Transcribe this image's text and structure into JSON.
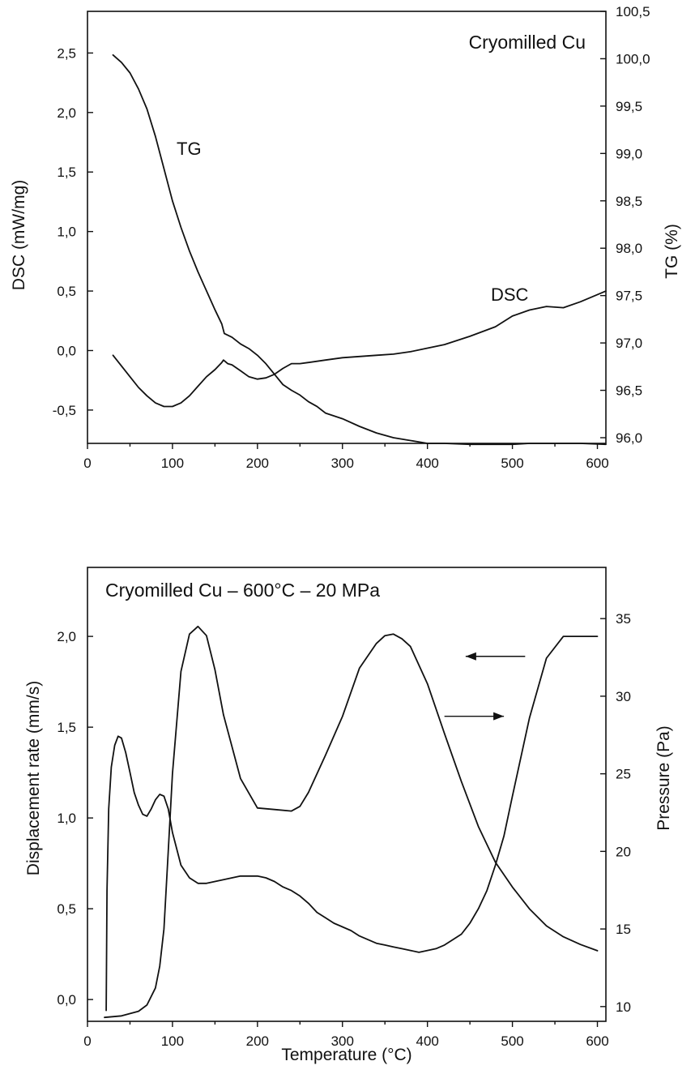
{
  "chart_data": [
    {
      "type": "line",
      "title": "Cryomilled Cu",
      "xlabel": "",
      "ylabel": "DSC (mW/mg)",
      "y2label": "TG (%)",
      "xlim": [
        0,
        610
      ],
      "ylim": [
        -0.78,
        2.85
      ],
      "y2lim": [
        95.94,
        100.5
      ],
      "xticks": [
        "0",
        "100",
        "200",
        "300",
        "400",
        "500",
        "600"
      ],
      "xtick_values": [
        0,
        100,
        200,
        300,
        400,
        500,
        600
      ],
      "yticks": [
        "-0,5",
        "0,0",
        "0,5",
        "1,0",
        "1,5",
        "2,0",
        "2,5"
      ],
      "ytick_values": [
        -0.5,
        0,
        0.5,
        1.0,
        1.5,
        2.0,
        2.5
      ],
      "y2ticks": [
        "96,0",
        "96,5",
        "97,0",
        "97,5",
        "98,0",
        "98,5",
        "99,0",
        "99,5",
        "100,0",
        "100,5"
      ],
      "y2tick_values": [
        96.0,
        96.5,
        97.0,
        97.5,
        98.0,
        98.5,
        99.0,
        99.5,
        100.0,
        100.5
      ],
      "annotations": [
        {
          "text": "TG",
          "x": 118,
          "y": 1.72
        },
        {
          "text": "DSC",
          "x": 503,
          "y": 0.46
        }
      ],
      "series": [
        {
          "name": "TG",
          "axis": "right",
          "x": [
            30,
            40,
            50,
            60,
            70,
            80,
            90,
            100,
            110,
            120,
            130,
            140,
            150,
            158,
            161,
            170,
            180,
            190,
            200,
            210,
            220,
            230,
            240,
            250,
            260,
            270,
            280,
            300,
            320,
            340,
            360,
            380,
            400,
            420,
            450,
            480,
            500,
            520,
            550,
            580,
            610
          ],
          "y": [
            100.04,
            99.96,
            99.85,
            99.68,
            99.47,
            99.18,
            98.84,
            98.5,
            98.22,
            97.97,
            97.75,
            97.55,
            97.35,
            97.2,
            97.1,
            97.06,
            96.99,
            96.94,
            96.87,
            96.78,
            96.67,
            96.56,
            96.5,
            96.45,
            96.38,
            96.33,
            96.26,
            96.2,
            96.12,
            96.05,
            96.0,
            95.97,
            95.94,
            95.94,
            95.93,
            95.93,
            95.93,
            95.94,
            95.94,
            95.94,
            95.93
          ]
        },
        {
          "name": "DSC",
          "axis": "left",
          "x": [
            30,
            40,
            50,
            60,
            70,
            80,
            90,
            100,
            110,
            120,
            130,
            140,
            150,
            158,
            160,
            165,
            170,
            180,
            190,
            200,
            210,
            220,
            230,
            240,
            250,
            260,
            280,
            300,
            320,
            340,
            360,
            380,
            400,
            420,
            450,
            480,
            500,
            520,
            540,
            560,
            580,
            610
          ],
          "y": [
            -0.04,
            -0.13,
            -0.22,
            -0.31,
            -0.38,
            -0.44,
            -0.47,
            -0.47,
            -0.44,
            -0.38,
            -0.3,
            -0.22,
            -0.16,
            -0.1,
            -0.08,
            -0.11,
            -0.12,
            -0.17,
            -0.22,
            -0.24,
            -0.23,
            -0.2,
            -0.15,
            -0.11,
            -0.11,
            -0.1,
            -0.08,
            -0.06,
            -0.05,
            -0.04,
            -0.03,
            -0.01,
            0.02,
            0.05,
            0.12,
            0.2,
            0.29,
            0.34,
            0.37,
            0.36,
            0.41,
            0.5
          ]
        }
      ]
    },
    {
      "type": "line",
      "title": "Cryomilled Cu – 600°C – 20 MPa",
      "xlabel": "Temperature (°C)",
      "ylabel": "Displacement rate (mm/s)",
      "y2label": "Pressure (Pa)",
      "xlim": [
        0,
        610
      ],
      "ylim": [
        -0.12,
        2.38
      ],
      "y2lim": [
        9.05,
        38.3
      ],
      "xticks": [
        "0",
        "100",
        "200",
        "300",
        "400",
        "500",
        "600"
      ],
      "xtick_values": [
        0,
        100,
        200,
        300,
        400,
        500,
        600
      ],
      "yticks": [
        "0,0",
        "0,5",
        "1,0",
        "1,5",
        "2,0"
      ],
      "ytick_values": [
        0,
        0.5,
        1.0,
        1.5,
        2.0
      ],
      "y2ticks": [
        "10",
        "15",
        "20",
        "25",
        "30",
        "35"
      ],
      "y2tick_values": [
        10,
        15,
        20,
        25,
        30,
        35
      ],
      "arrows": [
        {
          "direction": "left",
          "points_to_axis": "left",
          "x_from": 515,
          "x_to": 445,
          "y": 1.89
        },
        {
          "direction": "right",
          "points_to_axis": "right",
          "x_from": 420,
          "x_to": 490,
          "y": 1.56
        }
      ],
      "series": [
        {
          "name": "Displacement rate",
          "axis": "left",
          "x": [
            22,
            23,
            25,
            28,
            32,
            36,
            40,
            45,
            50,
            55,
            60,
            65,
            70,
            75,
            80,
            85,
            90,
            95,
            100,
            110,
            120,
            130,
            140,
            150,
            160,
            170,
            180,
            190,
            200,
            210,
            220,
            230,
            240,
            250,
            260,
            270,
            280,
            290,
            300,
            310,
            320,
            330,
            340,
            350,
            360,
            370,
            380,
            390,
            400,
            410,
            420,
            430,
            440,
            450,
            460,
            470,
            480,
            490,
            500,
            520,
            540,
            560,
            580,
            600
          ],
          "y": [
            -0.06,
            0.6,
            1.05,
            1.28,
            1.4,
            1.45,
            1.44,
            1.36,
            1.25,
            1.14,
            1.07,
            1.02,
            1.01,
            1.05,
            1.1,
            1.13,
            1.12,
            1.05,
            0.92,
            0.74,
            0.67,
            0.64,
            0.64,
            0.65,
            0.66,
            0.67,
            0.68,
            0.68,
            0.68,
            0.67,
            0.65,
            0.62,
            0.6,
            0.57,
            0.53,
            0.48,
            0.45,
            0.42,
            0.4,
            0.38,
            0.35,
            0.33,
            0.31,
            0.3,
            0.29,
            0.28,
            0.27,
            0.26,
            0.27,
            0.28,
            0.3,
            0.33,
            0.36,
            0.42,
            0.5,
            0.6,
            0.74,
            0.9,
            1.12,
            1.55,
            1.88,
            2.0,
            2.0,
            2.0
          ]
        },
        {
          "name": "Pressure",
          "axis": "right",
          "x": [
            20,
            40,
            60,
            70,
            80,
            85,
            90,
            95,
            100,
            110,
            120,
            130,
            140,
            150,
            160,
            180,
            200,
            220,
            240,
            250,
            260,
            280,
            300,
            320,
            340,
            350,
            360,
            370,
            380,
            400,
            420,
            440,
            460,
            480,
            500,
            520,
            540,
            560,
            580,
            600
          ],
          "y": [
            9.3,
            9.4,
            9.7,
            10.1,
            11.2,
            12.6,
            15.0,
            20.0,
            25.0,
            31.6,
            34.0,
            34.5,
            33.9,
            31.7,
            28.8,
            24.7,
            22.8,
            22.7,
            22.6,
            22.9,
            23.8,
            26.2,
            28.7,
            31.8,
            33.4,
            33.9,
            34.0,
            33.7,
            33.2,
            30.8,
            27.6,
            24.5,
            21.6,
            19.3,
            17.7,
            16.3,
            15.2,
            14.5,
            14.0,
            13.6
          ]
        }
      ]
    }
  ]
}
